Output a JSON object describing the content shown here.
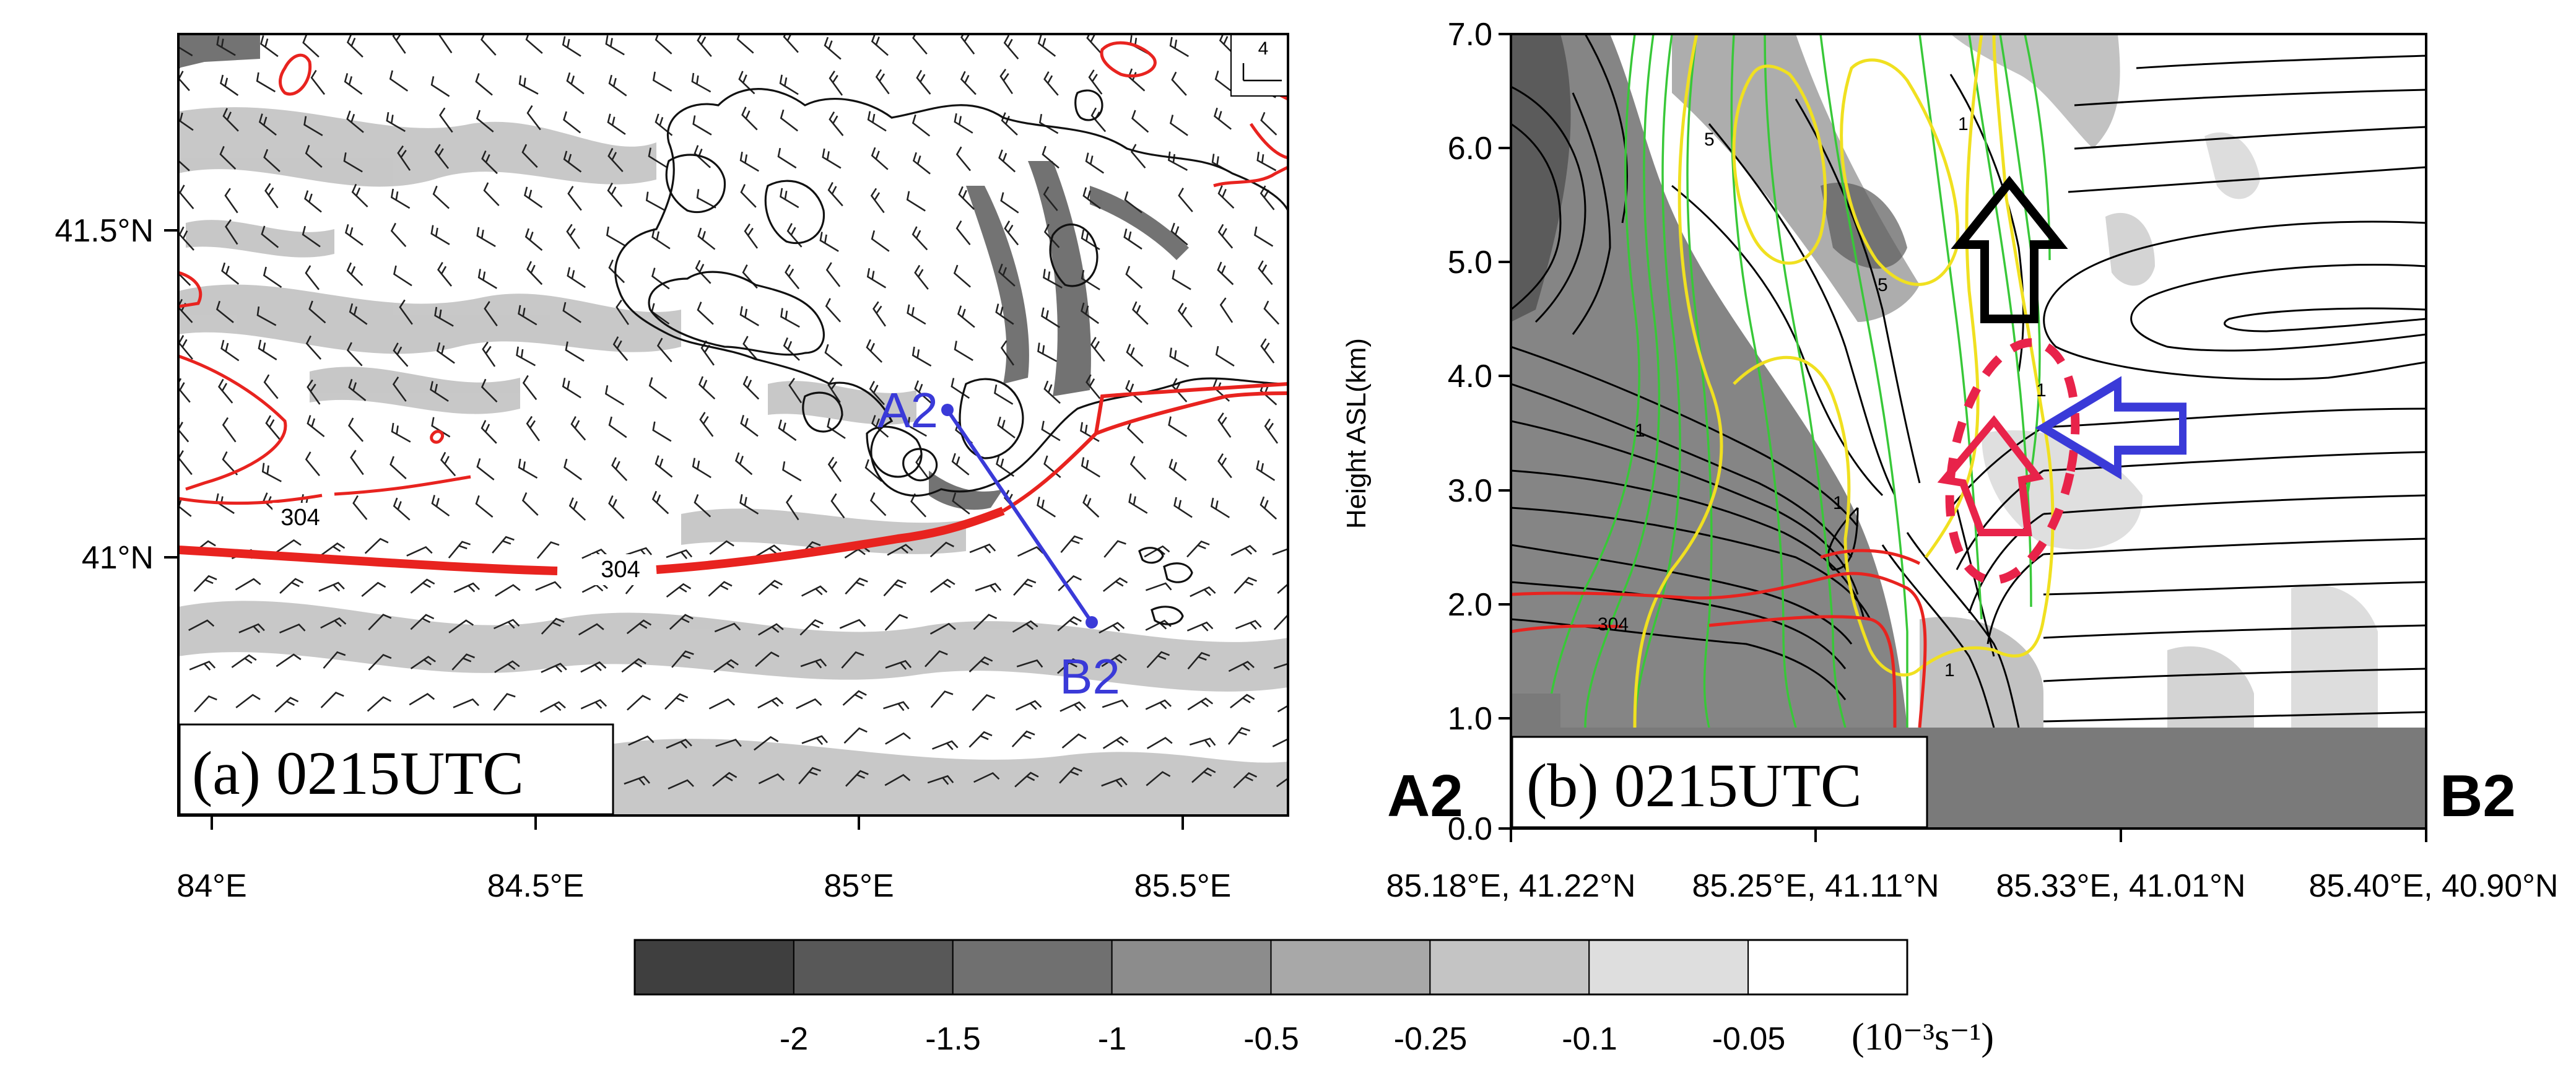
{
  "panel_a": {
    "label": "(a) 0215UTC",
    "x_ticks": [
      "84°E",
      "84.5°E",
      "85°E",
      "85.5°E"
    ],
    "y_ticks": [
      "41.5°N",
      "41°N"
    ],
    "contour_labels": [
      "304",
      "304"
    ],
    "points": [
      "A2",
      "B2"
    ],
    "reference_vector_label": "4",
    "colors": {
      "contour_red": "#e8231f",
      "section_line": "#3a3ad8",
      "barb": "#222222"
    }
  },
  "panel_b": {
    "label": "(b) 0215UTC",
    "ylabel": "Height ASL(km)",
    "y_ticks": [
      "1.0",
      "2.0",
      "3.0",
      "4.0",
      "5.0",
      "6.0",
      "7.0",
      "0.0"
    ],
    "x_ticks": [
      "85.18°E, 41.22°N",
      "85.25°E, 41.11°N",
      "85.33°E, 41.01°N",
      "85.40°E, 40.90°N"
    ],
    "end_labels": [
      "A2",
      "B2"
    ],
    "contour_labels": [
      "1",
      "5",
      "5",
      "1",
      "1",
      "1",
      "1",
      "304"
    ],
    "colors": {
      "yellow": "#f0e020",
      "green": "#38c838",
      "red": "#e8231f",
      "arrow_black": "#000000",
      "arrow_blue": "#3a3ad8",
      "arrow_red": "#e8234a",
      "terrain": "#7a7a7a"
    }
  },
  "colorbar": {
    "tick_labels": [
      "-2",
      "-1.5",
      "-1",
      "-0.5",
      "-0.25",
      "-0.1",
      "-0.05"
    ],
    "unit_label": "(10⁻³s⁻¹)",
    "colors": [
      "#3f3f3f",
      "#585858",
      "#707070",
      "#8c8c8c",
      "#a8a8a8",
      "#c4c4c4",
      "#dedede",
      "#ffffff"
    ]
  }
}
